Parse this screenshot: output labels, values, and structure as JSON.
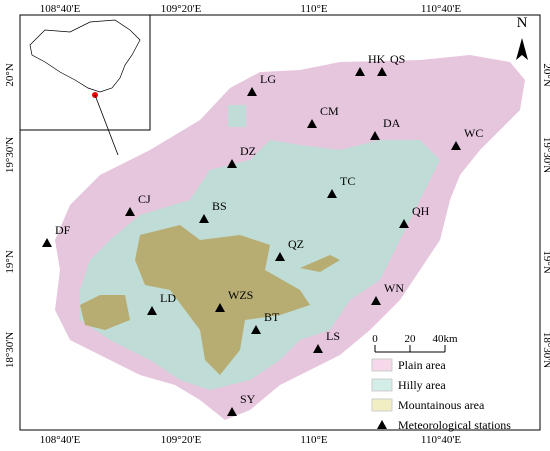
{
  "map": {
    "lon_labels": [
      "108°40'E",
      "109°20'E",
      "110°E",
      "110°40'E"
    ],
    "lat_labels": [
      "20°N",
      "19°30'N",
      "19°N",
      "18°30'N"
    ],
    "north": "N",
    "scale": [
      "0",
      "20",
      "40km"
    ],
    "stations": [
      "LG",
      "HK",
      "QS",
      "CM",
      "DA",
      "WC",
      "DZ",
      "TC",
      "CJ",
      "BS",
      "QH",
      "DF",
      "QZ",
      "LD",
      "WZS",
      "WN",
      "BT",
      "LS",
      "SY"
    ],
    "legend": [
      {
        "label": "Plain area",
        "color": "#f5d9ea"
      },
      {
        "label": "Hilly area",
        "color": "#d3ede9"
      },
      {
        "label": "Mountainous area",
        "color": "#f2eec4"
      },
      {
        "label": "Meteorological stations",
        "color": "#000000"
      }
    ]
  }
}
